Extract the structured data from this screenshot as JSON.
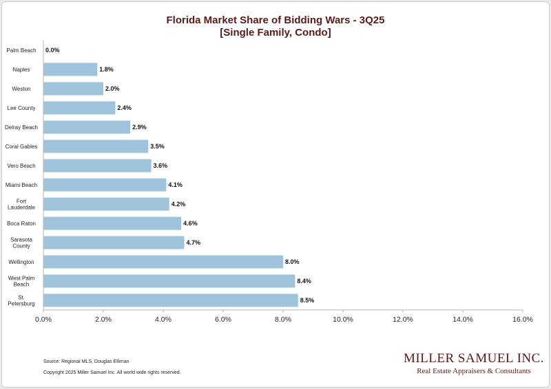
{
  "chart_data": {
    "type": "bar",
    "orientation": "horizontal",
    "title": "Florida Market Share of Bidding Wars - 3Q25",
    "subtitle": "[Single Family, Condo]",
    "categories": [
      "Palm Beach",
      "Naples",
      "Weston",
      "Lee County",
      "Delray Beach",
      "Coral Gables",
      "Vero Beach",
      "Miami Beach",
      "Fort Lauderdale",
      "Boca Raton",
      "Sarasota County",
      "Wellington",
      "West Palm Beach",
      "St. Petersburg"
    ],
    "values": [
      0.0,
      1.8,
      2.0,
      2.4,
      2.9,
      3.5,
      3.6,
      4.1,
      4.2,
      4.6,
      4.7,
      8.0,
      8.4,
      8.5
    ],
    "value_labels": [
      "0.0%",
      "1.8%",
      "2.0%",
      "2.4%",
      "2.9%",
      "3.5%",
      "3.6%",
      "4.1%",
      "4.2%",
      "4.6%",
      "4.7%",
      "8.0%",
      "8.4%",
      "8.5%"
    ],
    "xlim": [
      0,
      16
    ],
    "x_ticks": [
      "0.0%",
      "2.0%",
      "4.0%",
      "6.0%",
      "8.0%",
      "10.0%",
      "12.0%",
      "14.0%",
      "16.0%"
    ],
    "grid": false,
    "bar_color": "#9fc3db"
  },
  "footer": {
    "source": "Source: Regional MLS, Douglas Elliman",
    "copyright": "Copyright 2025 Miller Samuel Inc.  All world wide rights reserved."
  },
  "brand": {
    "name": "MILLER SAMUEL INC.",
    "tagline": "Real Estate Appraisers & Consultants"
  },
  "colors": {
    "title": "#5a1a1a",
    "axis": "#b5b5b5"
  }
}
